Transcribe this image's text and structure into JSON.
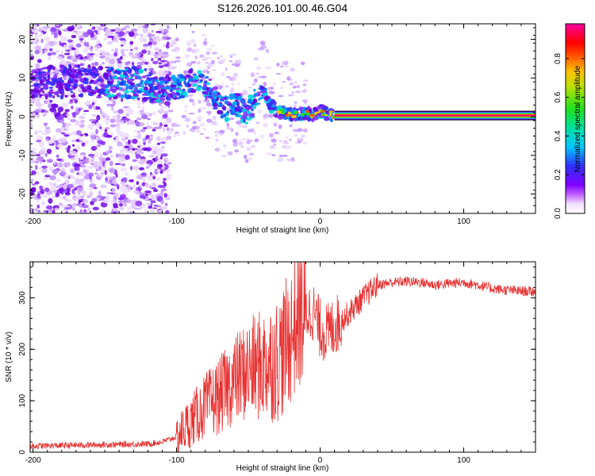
{
  "figure_title": "S126.2026.101.00.46.G04",
  "colors": {
    "spectrum_low": "#8000ff",
    "snr_line": "#e83232",
    "frame": "#000000"
  },
  "chart_data": [
    {
      "type": "heatmap",
      "title": "S126.2026.101.00.46.G04",
      "xlabel": "Height of straight line (km)",
      "ylabel": "Frequency (Hz)",
      "xlim": [
        -202,
        150
      ],
      "ylim": [
        -25,
        24
      ],
      "xticks": [
        -200,
        -100,
        0,
        100
      ],
      "yticks": [
        -20,
        -10,
        0,
        10,
        20
      ],
      "colorbar": {
        "label": "Normalized spectral amplitude",
        "range": [
          0,
          0.98
        ],
        "ticks": [
          0.0,
          0.2,
          0.4,
          0.6,
          0.8
        ]
      },
      "ridge": {
        "x": [
          -200,
          -180,
          -165,
          -155,
          -145,
          -135,
          -125,
          -115,
          -105,
          -95,
          -88,
          -80,
          -75,
          -70,
          -65,
          -60,
          -55,
          -50,
          -45,
          -40,
          -35,
          -30,
          -25,
          -20,
          -15,
          -10,
          -5,
          0,
          5,
          10
        ],
        "y": [
          9,
          9,
          9.5,
          9,
          8.5,
          9,
          8.5,
          7.5,
          7,
          8,
          9.5,
          8,
          6,
          3,
          2,
          4,
          2,
          1,
          5,
          7,
          3,
          1.5,
          1,
          0.5,
          0.5,
          1,
          0.5,
          1.5,
          0.8,
          0.3
        ]
      },
      "flat_band": {
        "x_start": 10,
        "x_end": 150,
        "frequency": 0.3
      }
    },
    {
      "type": "line",
      "xlabel": "Height of straight line (km)",
      "ylabel": "SNR (10 * v/v)",
      "xlim": [
        -202,
        150
      ],
      "ylim": [
        0,
        370
      ],
      "xticks": [
        -200,
        -100,
        0,
        100
      ],
      "yticks": [
        0,
        100,
        200,
        300
      ],
      "series": [
        {
          "name": "SNR",
          "x": [
            -200,
            -160,
            -120,
            -110,
            -100,
            -90,
            -80,
            -70,
            -60,
            -50,
            -40,
            -30,
            -25,
            -20,
            -15,
            -10,
            -5,
            0,
            5,
            10,
            20,
            30,
            40,
            50,
            60,
            70,
            80,
            90,
            100,
            110,
            120,
            130,
            140,
            150
          ],
          "values": [
            12,
            14,
            16,
            20,
            30,
            60,
            90,
            110,
            140,
            160,
            170,
            180,
            200,
            230,
            260,
            270,
            275,
            240,
            230,
            245,
            270,
            300,
            325,
            330,
            332,
            330,
            325,
            328,
            330,
            325,
            318,
            315,
            313,
            312
          ]
        }
      ]
    }
  ]
}
